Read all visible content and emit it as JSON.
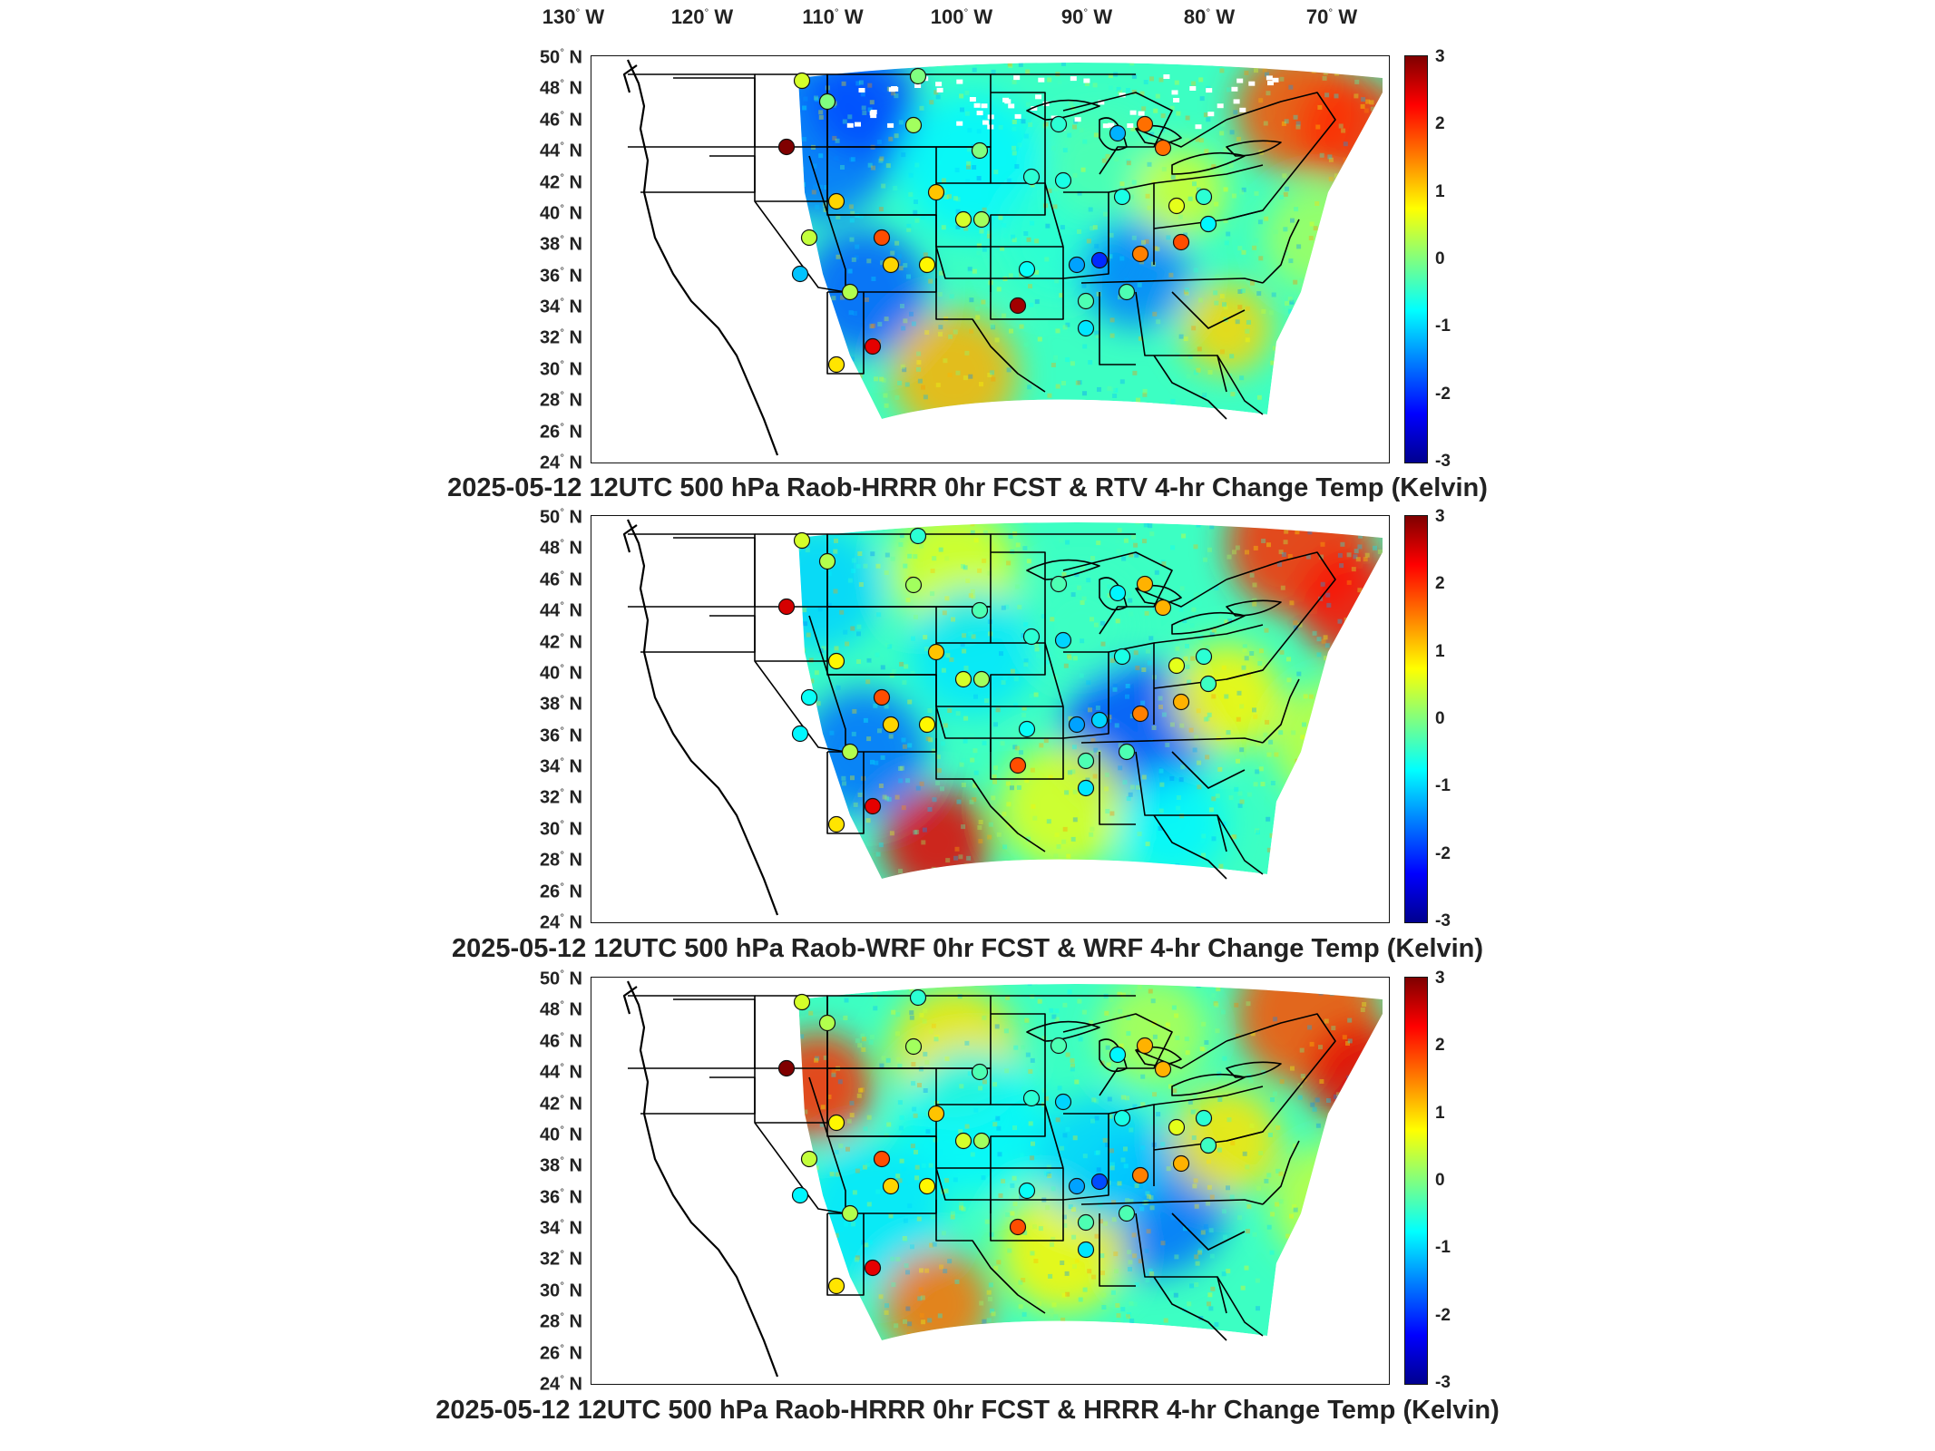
{
  "longitude_labels": [
    {
      "deg": "130",
      "dir": "W"
    },
    {
      "deg": "120",
      "dir": "W"
    },
    {
      "deg": "110",
      "dir": "W"
    },
    {
      "deg": "100",
      "dir": "W"
    },
    {
      "deg": "90",
      "dir": "W"
    },
    {
      "deg": "80",
      "dir": "W"
    },
    {
      "deg": "70",
      "dir": "W"
    }
  ],
  "latitude_labels": [
    {
      "deg": "50",
      "dir": "N"
    },
    {
      "deg": "48",
      "dir": "N"
    },
    {
      "deg": "46",
      "dir": "N"
    },
    {
      "deg": "44",
      "dir": "N"
    },
    {
      "deg": "42",
      "dir": "N"
    },
    {
      "deg": "40",
      "dir": "N"
    },
    {
      "deg": "38",
      "dir": "N"
    },
    {
      "deg": "36",
      "dir": "N"
    },
    {
      "deg": "34",
      "dir": "N"
    },
    {
      "deg": "32",
      "dir": "N"
    },
    {
      "deg": "30",
      "dir": "N"
    },
    {
      "deg": "28",
      "dir": "N"
    },
    {
      "deg": "26",
      "dir": "N"
    },
    {
      "deg": "24",
      "dir": "N"
    }
  ],
  "colorbar": {
    "ticks": [
      "3",
      "2",
      "1",
      "0",
      "-1",
      "-2",
      "-3"
    ],
    "range": [
      -3,
      3
    ],
    "colormap": "jet"
  },
  "panels": [
    {
      "title": "2025-05-12 12UTC 500 hPa Raob-HRRR 0hr FCST & RTV 4-hr Change Temp (Kelvin)"
    },
    {
      "title": "2025-05-12 12UTC 500 hPa Raob-WRF 0hr FCST & WRF 4-hr Change Temp (Kelvin)"
    },
    {
      "title": "2025-05-12 12UTC 500 hPa Raob-HRRR 0hr FCST & HRRR 4-hr Change Temp (Kelvin)"
    }
  ],
  "colors": {
    "raob_warm_max": "#8b0000",
    "raob_warm": "#ff4400",
    "raob_neutral": "#9ef07a",
    "raob_cold": "#1a6fff",
    "map_lines": "#000000"
  }
}
